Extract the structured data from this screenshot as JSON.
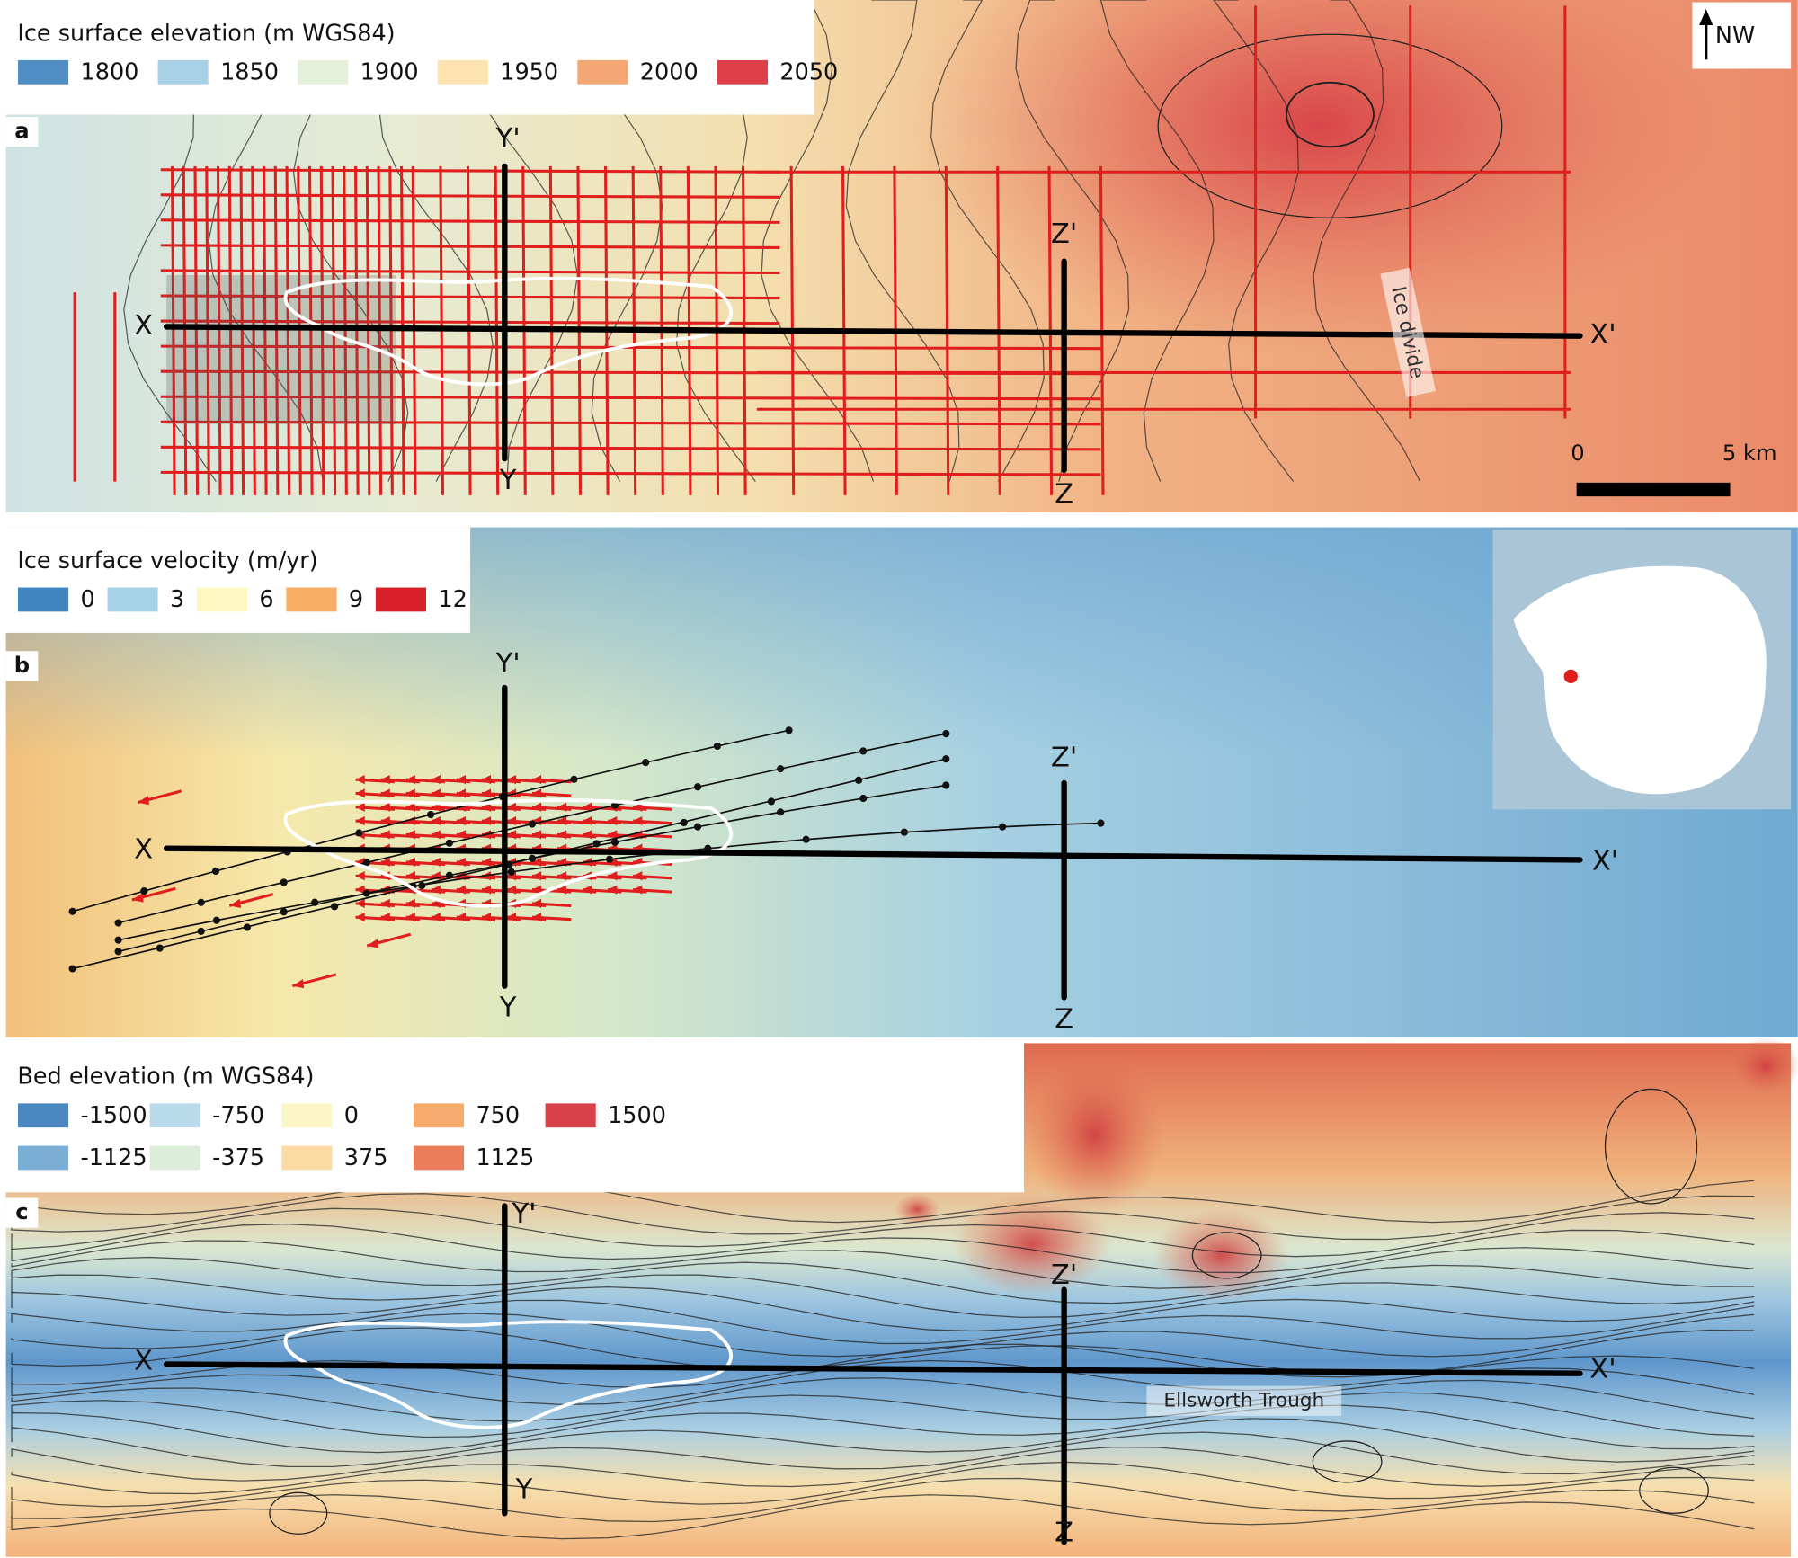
{
  "panels": [
    {
      "letter": "a",
      "legend_title": "Ice surface elevation (m WGS84)",
      "legend": [
        {
          "label": 1800,
          "color": "#4f8dc2"
        },
        {
          "label": 1850,
          "color": "#a9d1e6"
        },
        {
          "label": 1900,
          "color": "#e4f0da"
        },
        {
          "label": 1950,
          "color": "#fde3b0"
        },
        {
          "label": 2000,
          "color": "#f4a674"
        },
        {
          "label": 2050,
          "color": "#dd4048"
        }
      ],
      "profile_labels": {
        "x": "X",
        "x_end": "X'",
        "y_end": "Y'",
        "y": "Y",
        "z_end": "Z'",
        "z": "Z"
      }
    },
    {
      "letter": "b",
      "legend_title": "Ice surface velocity (m/yr)",
      "legend": [
        {
          "label": 0,
          "color": "#3f85bf"
        },
        {
          "label": 3,
          "color": "#a6d2e6"
        },
        {
          "label": 6,
          "color": "#fdf7c0"
        },
        {
          "label": 9,
          "color": "#f8ac66"
        },
        {
          "label": 12,
          "color": "#d7202a"
        }
      ],
      "profile_labels": {
        "x": "X",
        "x_end": "X'",
        "y_end": "Y'",
        "y": "Y",
        "z_end": "Z'",
        "z": "Z"
      }
    },
    {
      "letter": "c",
      "legend_title": "Bed elevation (m WGS84)",
      "legend": [
        {
          "label": -1500,
          "color": "#4a86c0"
        },
        {
          "label": -1125,
          "color": "#7aaed4"
        },
        {
          "label": -750,
          "color": "#b8daea"
        },
        {
          "label": -375,
          "color": "#dcedda"
        },
        {
          "label": 0,
          "color": "#fcf6c6"
        },
        {
          "label": 375,
          "color": "#fcdca4"
        },
        {
          "label": 750,
          "color": "#f6aa6c"
        },
        {
          "label": 1125,
          "color": "#ec7d5c"
        },
        {
          "label": 1500,
          "color": "#d8404a"
        }
      ],
      "profile_labels": {
        "x": "X",
        "x_end": "X'",
        "y_end": "Y'",
        "y": "Y",
        "z_end": "Z'",
        "z": "Z"
      }
    }
  ],
  "north_arrow": "NW",
  "scale_bar": {
    "start": "0",
    "end": "5 km"
  },
  "annotations": {
    "ice_divide": "Ice divide",
    "ellsworth_trough": "Ellsworth Trough"
  }
}
